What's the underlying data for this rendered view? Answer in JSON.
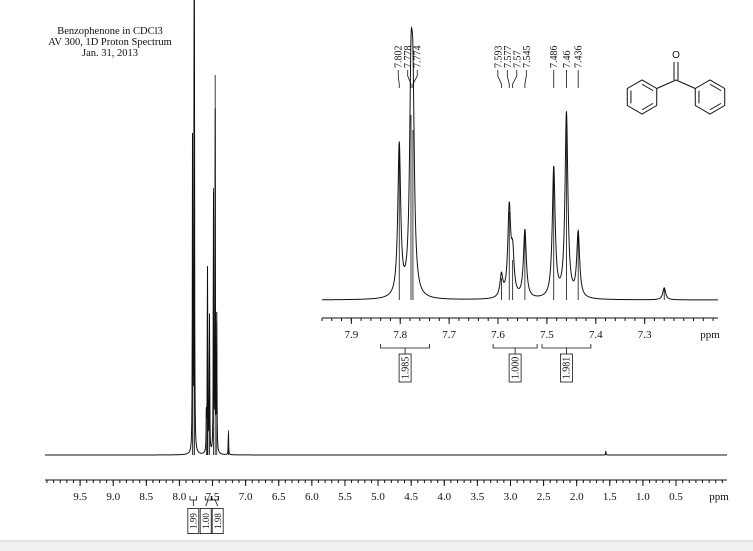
{
  "header": {
    "title": "Benzophenone in CDCl3",
    "subtitle": "AV 300, 1D Proton Spectrum",
    "date": "Jan. 31, 2013"
  },
  "structure": {
    "atom_label": "O"
  },
  "chart_data": {
    "type": "spectrum",
    "x_label": "ppm",
    "xlim": [
      10.03,
      -0.27
    ],
    "xticks": [
      9.5,
      {
        "value": 9,
        "label": "9.0"
      },
      8.5,
      {
        "value": 8,
        "label": "8.0"
      },
      7.5,
      {
        "value": 7,
        "label": "7.0"
      },
      6.5,
      {
        "value": 6,
        "label": "6.0"
      },
      5.5,
      {
        "value": 5,
        "label": "5.0"
      },
      4.5,
      {
        "value": 4,
        "label": "4.0"
      },
      3.5,
      {
        "value": 3,
        "label": "3.0"
      },
      2.5,
      {
        "value": 2,
        "label": "2.0"
      },
      1.5,
      {
        "value": 1,
        "label": "1.0"
      },
      0.5
    ],
    "peaks": {
      "x": [
        7.802,
        7.778,
        7.774,
        7.593,
        7.577,
        7.57,
        7.545,
        7.486,
        7.46,
        7.436
      ],
      "values": [
        152,
        185,
        170,
        22,
        88,
        40,
        68,
        130,
        185,
        65
      ]
    },
    "other_peaks": {
      "x": [
        7.26,
        1.56
      ],
      "values": [
        12,
        2
      ]
    },
    "inset": {
      "x_label": "ppm",
      "xlim": [
        7.96,
        7.15
      ],
      "xticks": [
        7.9,
        7.8,
        7.7,
        7.6,
        7.5,
        7.4,
        7.3
      ]
    },
    "integrals": {
      "regions": [
        [
          7.84,
          7.74
        ],
        [
          7.61,
          7.52
        ],
        [
          7.51,
          7.41
        ]
      ],
      "values": [
        1.985,
        1,
        1.981
      ],
      "value_labels": [
        "1.985",
        "1.000",
        "1.981"
      ],
      "main_value_labels": [
        "1.99",
        "1.00",
        "1.98"
      ]
    }
  }
}
